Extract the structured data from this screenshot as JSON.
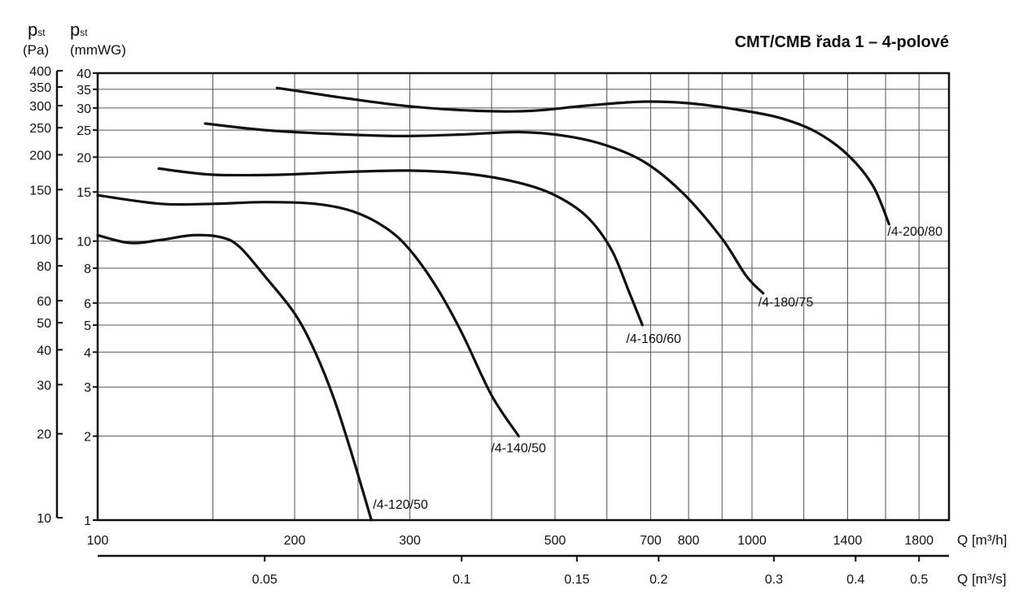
{
  "chart_data": {
    "type": "line",
    "title": "CMT/CMB řada 1 – 4-polové",
    "x_scale": "log",
    "y_scale": "log",
    "grid": true,
    "xlim": [
      100,
      2000
    ],
    "x_ticks": [
      100,
      200,
      300,
      500,
      700,
      800,
      1000,
      1400,
      1800
    ],
    "x_grid": [
      100,
      150,
      200,
      250,
      300,
      400,
      500,
      600,
      700,
      800,
      900,
      1000,
      1200,
      1400,
      1600,
      1800,
      2000
    ],
    "x2_ticks": [
      0.05,
      0.1,
      0.15,
      0.2,
      0.3,
      0.4,
      0.5
    ],
    "ylim_mmwg": [
      1,
      40
    ],
    "y_ticks_mmwg": [
      1,
      2,
      3,
      4,
      5,
      6,
      8,
      10,
      15,
      20,
      25,
      30,
      35,
      40
    ],
    "y_ticks_pa": [
      10,
      20,
      30,
      40,
      50,
      60,
      80,
      100,
      150,
      200,
      250,
      300,
      350,
      400
    ],
    "axis_labels": {
      "pa_symbol": "p",
      "pa_sub": "st",
      "pa_unit": "(Pa)",
      "mmwg_symbol": "p",
      "mmwg_sub": "st",
      "mmwg_unit": "(mmWG)",
      "x_label": "Q [m³/h]",
      "x2_label": "Q [m³/s]"
    },
    "series": [
      {
        "name": "/4-120/50",
        "points": [
          [
            100,
            10.5
          ],
          [
            112,
            9.85
          ],
          [
            125,
            10.1
          ],
          [
            140,
            10.5
          ],
          [
            155,
            10.3
          ],
          [
            165,
            9.5
          ],
          [
            180,
            7.5
          ],
          [
            200,
            5.5
          ],
          [
            215,
            4.0
          ],
          [
            230,
            2.7
          ],
          [
            245,
            1.7
          ],
          [
            262,
            1.0
          ]
        ]
      },
      {
        "name": "/4-140/50",
        "points": [
          [
            100,
            14.6
          ],
          [
            125,
            13.6
          ],
          [
            150,
            13.6
          ],
          [
            180,
            13.8
          ],
          [
            215,
            13.6
          ],
          [
            245,
            12.8
          ],
          [
            275,
            11.2
          ],
          [
            300,
            9.3
          ],
          [
            330,
            6.8
          ],
          [
            360,
            4.7
          ],
          [
            400,
            2.8
          ],
          [
            440,
            2.0
          ]
        ]
      },
      {
        "name": "/4-160/60",
        "points": [
          [
            124,
            18.2
          ],
          [
            150,
            17.3
          ],
          [
            190,
            17.3
          ],
          [
            240,
            17.7
          ],
          [
            300,
            17.9
          ],
          [
            370,
            17.4
          ],
          [
            440,
            16.2
          ],
          [
            500,
            14.6
          ],
          [
            560,
            12.2
          ],
          [
            610,
            9.3
          ],
          [
            650,
            6.5
          ],
          [
            680,
            5.0
          ]
        ]
      },
      {
        "name": "/4-180/75",
        "points": [
          [
            146,
            26.4
          ],
          [
            180,
            25.0
          ],
          [
            230,
            24.2
          ],
          [
            290,
            23.8
          ],
          [
            360,
            24.1
          ],
          [
            440,
            24.6
          ],
          [
            520,
            23.8
          ],
          [
            600,
            22.0
          ],
          [
            690,
            19.0
          ],
          [
            790,
            14.6
          ],
          [
            900,
            10.2
          ],
          [
            980,
            7.5
          ],
          [
            1040,
            6.5
          ]
        ]
      },
      {
        "name": "/4-200/80",
        "points": [
          [
            188,
            35.4
          ],
          [
            240,
            32.5
          ],
          [
            300,
            30.4
          ],
          [
            380,
            29.3
          ],
          [
            460,
            29.3
          ],
          [
            560,
            30.6
          ],
          [
            680,
            31.6
          ],
          [
            800,
            31.2
          ],
          [
            950,
            29.6
          ],
          [
            1100,
            27.7
          ],
          [
            1250,
            24.7
          ],
          [
            1400,
            20.4
          ],
          [
            1530,
            15.8
          ],
          [
            1620,
            11.5
          ]
        ]
      }
    ]
  }
}
